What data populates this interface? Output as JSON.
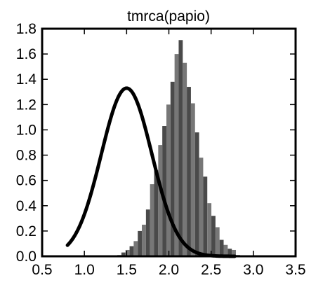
{
  "chart_data": {
    "type": "histogram",
    "title": "tmrca(papio)",
    "xlabel": "",
    "ylabel": "",
    "xlim": [
      0.5,
      3.5
    ],
    "ylim": [
      0.0,
      1.8
    ],
    "xticks": [
      "0.5",
      "1.0",
      "1.5",
      "2.0",
      "2.5",
      "3.0",
      "3.5"
    ],
    "yticks": [
      "0.0",
      "0.2",
      "0.4",
      "0.6",
      "0.8",
      "1.0",
      "1.2",
      "1.4",
      "1.6",
      "1.8"
    ],
    "grid": false,
    "legend": "none",
    "histogram": {
      "bin_width": 0.0484,
      "bin_starts": [
        1.39,
        1.4384,
        1.4868,
        1.5352,
        1.5836,
        1.632,
        1.6804,
        1.7288,
        1.7772,
        1.8256,
        1.874,
        1.9224,
        1.9708,
        2.0192,
        2.0676,
        2.116,
        2.1644,
        2.2128,
        2.2612,
        2.3096,
        2.358,
        2.4064,
        2.4548,
        2.5032,
        2.5516,
        2.6,
        2.6484,
        2.6968,
        2.7452,
        2.7936,
        2.842
      ],
      "values": [
        0.01,
        0.03,
        0.05,
        0.08,
        0.12,
        0.2,
        0.25,
        0.37,
        0.57,
        0.68,
        0.88,
        1.03,
        1.2,
        1.38,
        1.6,
        1.71,
        1.53,
        1.34,
        1.21,
        0.98,
        0.78,
        0.63,
        0.42,
        0.32,
        0.23,
        0.13,
        0.09,
        0.06,
        0.05,
        0.01,
        0.0
      ],
      "colors": [
        "#777777",
        "#4a4a4a"
      ]
    },
    "curve": {
      "type": "normal-density",
      "mean": 1.5,
      "sd": 0.3,
      "x_range": [
        0.8,
        2.78
      ],
      "color": "#000000"
    }
  }
}
